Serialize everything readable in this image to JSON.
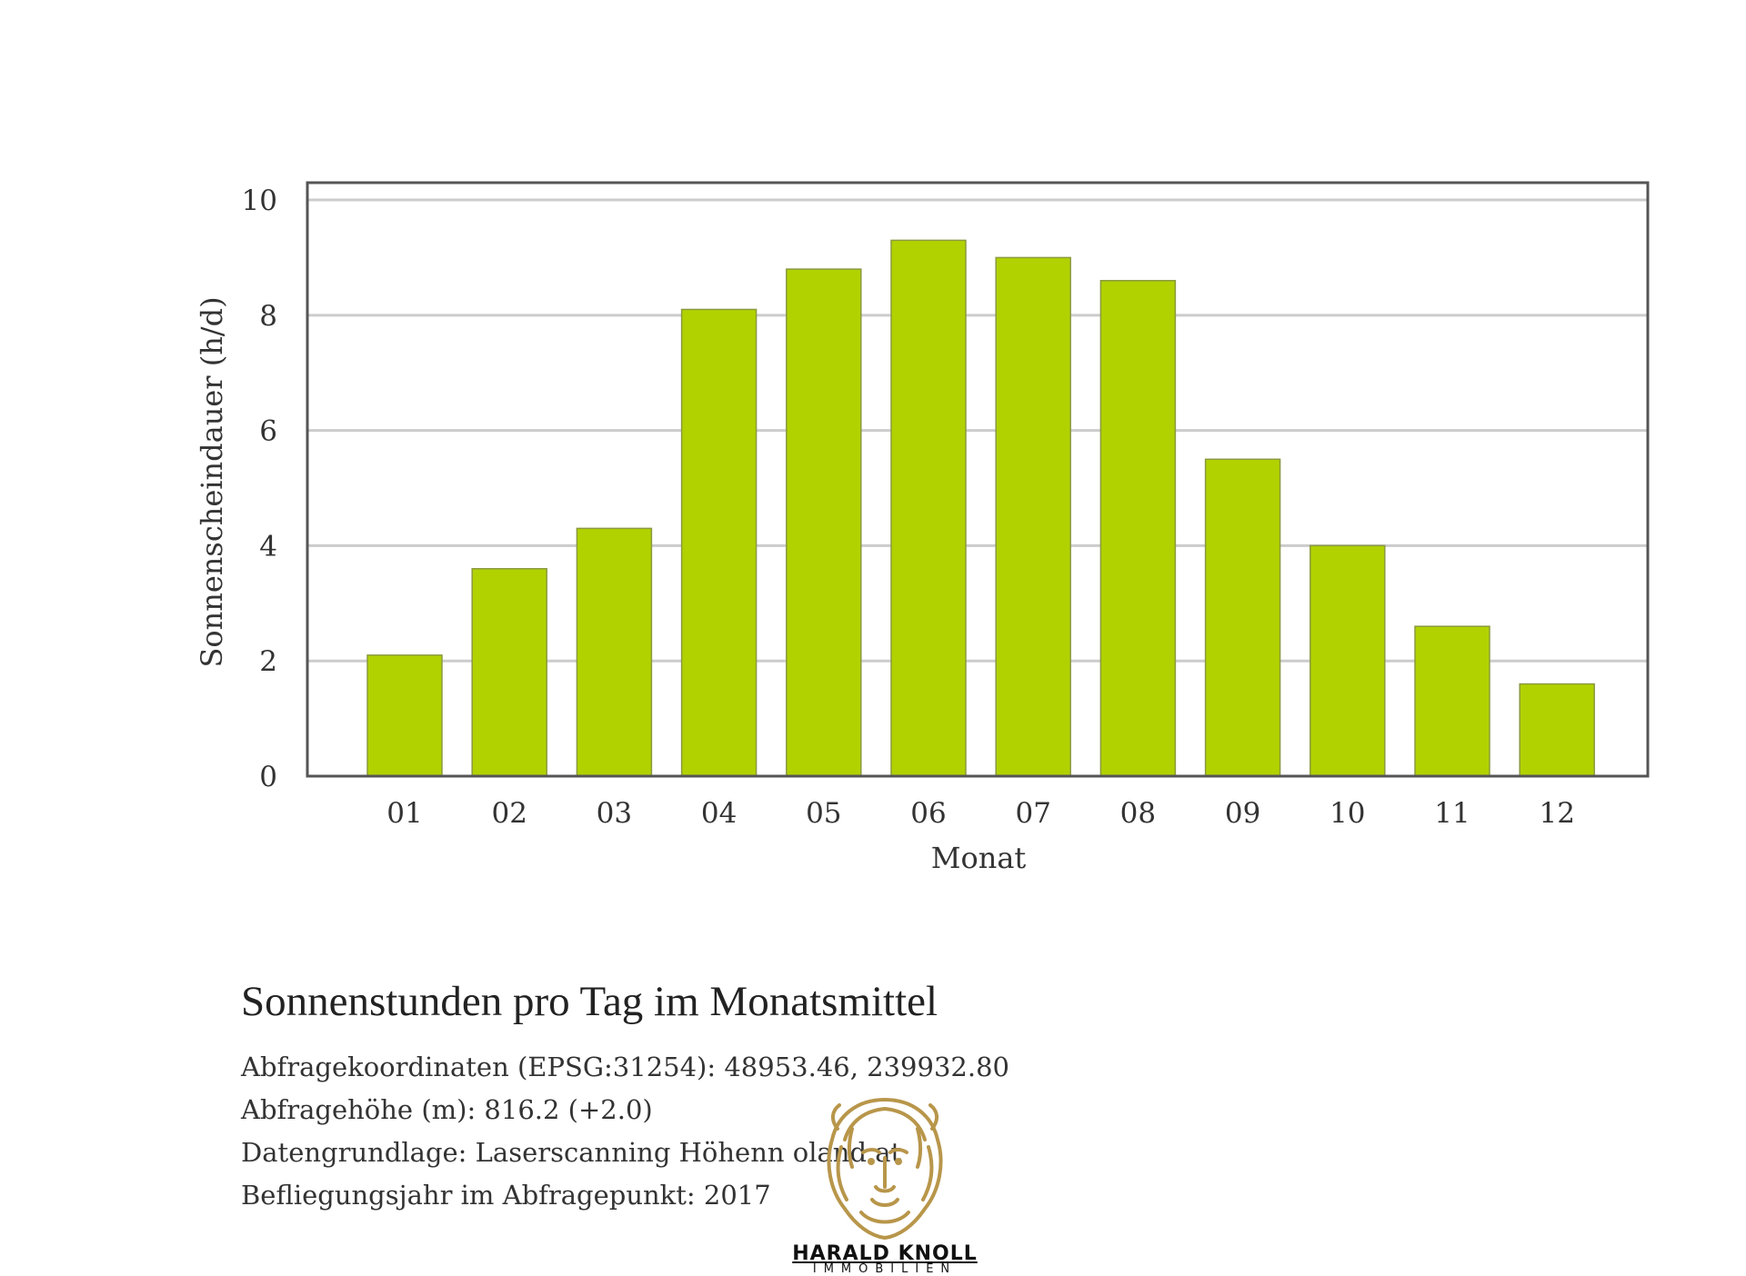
{
  "chart_data": {
    "type": "bar",
    "categories": [
      "01",
      "02",
      "03",
      "04",
      "05",
      "06",
      "07",
      "08",
      "09",
      "10",
      "11",
      "12"
    ],
    "values": [
      2.1,
      3.6,
      4.3,
      8.1,
      8.8,
      9.3,
      9.0,
      8.6,
      5.5,
      4.0,
      2.6,
      1.6
    ],
    "xlabel": "Monat",
    "ylabel": "Sonnenscheindauer (h/d)",
    "ylim": [
      0,
      10.3
    ],
    "yticks": [
      0,
      2,
      4,
      6,
      8,
      10
    ],
    "grid": true,
    "bar_color": "#b2d200",
    "bar_edge_color": "#8a9a40",
    "grid_color": "#cccccc",
    "frame_color": "#555555"
  },
  "caption": {
    "title": "Sonnenstunden pro Tag im Monatsmittel",
    "lines": [
      "Abfragekoordinaten (EPSG:31254): 48953.46, 239932.80",
      "Abfragehöhe (m): 816.2 (+2.0)",
      "Datengrundlage: Laserscanning Höhenn                       oland.at",
      "Befliegungsjahr im Abfragepunkt: 2017"
    ]
  },
  "logo": {
    "name": "lion-logo",
    "text": "HARALD KNOLL",
    "subtext": "IMMOBILIEN",
    "color": "#b8964a"
  }
}
